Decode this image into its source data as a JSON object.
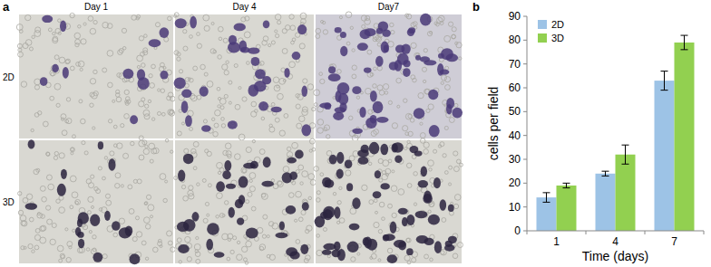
{
  "figure": {
    "panel_labels": [
      "a",
      "b"
    ]
  },
  "micrographs": {
    "columns": [
      "Day 1",
      "Day 4",
      "Day7"
    ],
    "rows": [
      "2D",
      "3D"
    ]
  },
  "chart_data": {
    "type": "bar",
    "x_label": "Time (days)",
    "y_label": "cells per field",
    "categories": [
      "1",
      "4",
      "7"
    ],
    "series": [
      {
        "name": "2D",
        "color": "#9dc3e6",
        "values": [
          14,
          24,
          63
        ],
        "errors": [
          2,
          1,
          4
        ]
      },
      {
        "name": "3D",
        "color": "#92d050",
        "values": [
          19,
          32,
          79
        ],
        "errors": [
          1,
          4,
          3
        ]
      }
    ],
    "ylim": [
      0,
      90
    ],
    "yticks": [
      0,
      10,
      20,
      30,
      40,
      50,
      60,
      70,
      80,
      90
    ],
    "grid": false,
    "legend": "upper left"
  }
}
